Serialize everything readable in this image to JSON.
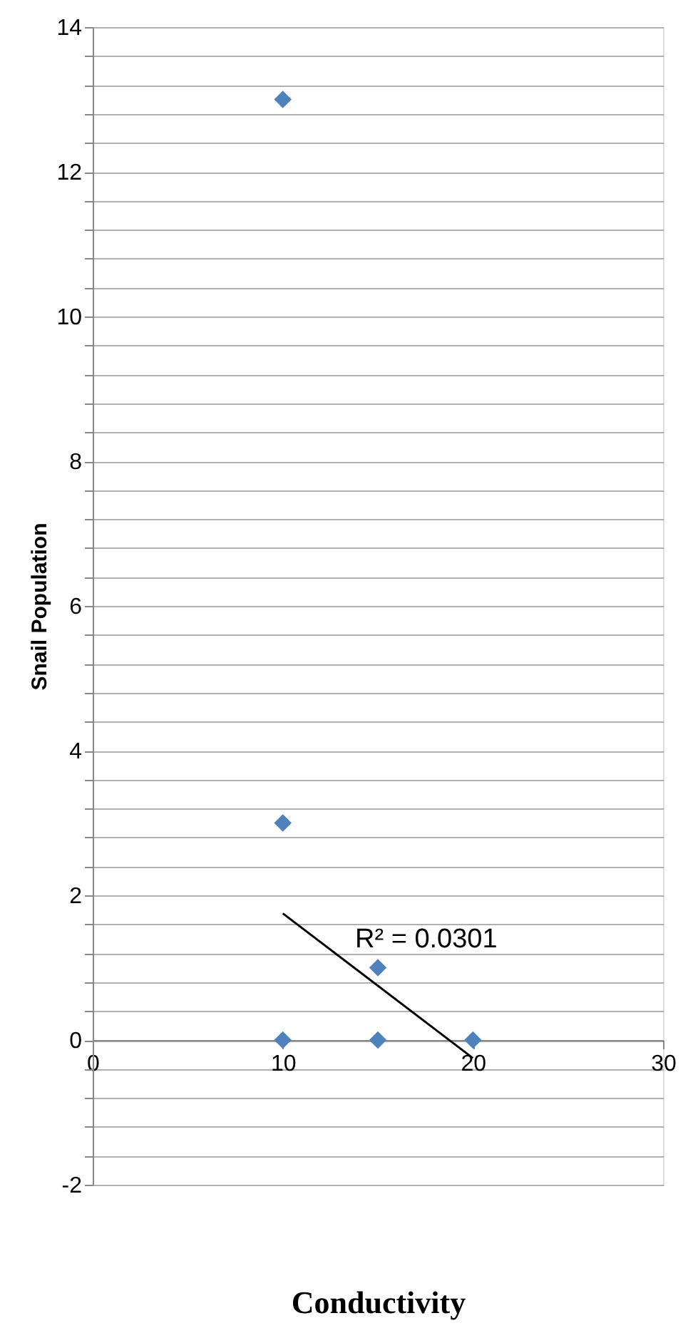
{
  "chart_data": {
    "type": "scatter",
    "xlabel": "Conductivity",
    "ylabel": "Snail Population",
    "xlim": [
      0,
      30
    ],
    "xticks": [
      0,
      10,
      20,
      30
    ],
    "ylim": [
      -2,
      14
    ],
    "yticks": [
      -2,
      {
        "value": -1.6,
        "label": null
      },
      {
        "value": -1.2,
        "label": null
      },
      {
        "value": -0.8,
        "label": null
      },
      {
        "value": -0.4,
        "label": null
      },
      0,
      {
        "value": 0.4,
        "label": null
      },
      {
        "value": 0.8,
        "label": null
      },
      {
        "value": 1.2,
        "label": null
      },
      {
        "value": 1.6,
        "label": null
      },
      2,
      {
        "value": 2.4,
        "label": null
      },
      {
        "value": 2.8,
        "label": null
      },
      {
        "value": 3.2,
        "label": null
      },
      {
        "value": 3.6,
        "label": null
      },
      4,
      {
        "value": 4.4,
        "label": null
      },
      {
        "value": 4.8,
        "label": null
      },
      {
        "value": 5.2,
        "label": null
      },
      {
        "value": 5.6,
        "label": null
      },
      6,
      {
        "value": 6.4,
        "label": null
      },
      {
        "value": 6.8,
        "label": null
      },
      {
        "value": 7.2,
        "label": null
      },
      {
        "value": 7.6,
        "label": null
      },
      8,
      {
        "value": 8.4,
        "label": null
      },
      {
        "value": 8.8,
        "label": null
      },
      {
        "value": 9.2,
        "label": null
      },
      {
        "value": 9.6,
        "label": null
      },
      10,
      {
        "value": 10.4,
        "label": null
      },
      {
        "value": 10.8,
        "label": null
      },
      {
        "value": 11.2,
        "label": null
      },
      {
        "value": 11.6,
        "label": null
      },
      12,
      {
        "value": 12.4,
        "label": null
      },
      {
        "value": 12.8,
        "label": null
      },
      {
        "value": 13.2,
        "label": null
      },
      {
        "value": 13.6,
        "label": null
      },
      14
    ],
    "grid": "y",
    "marker": "diamond",
    "series": [
      {
        "color": "#4f81bd",
        "x": [
          10,
          10,
          10,
          15,
          15,
          20
        ],
        "values": [
          13,
          3,
          0,
          1,
          0,
          0
        ]
      },
      {
        "type": "line",
        "color": "#000000",
        "x": [
          10,
          20
        ],
        "values": [
          1.75,
          -0.25
        ],
        "line_style": "solid",
        "marker": "none"
      }
    ],
    "annotations": [
      "R² = 0.0301"
    ]
  }
}
